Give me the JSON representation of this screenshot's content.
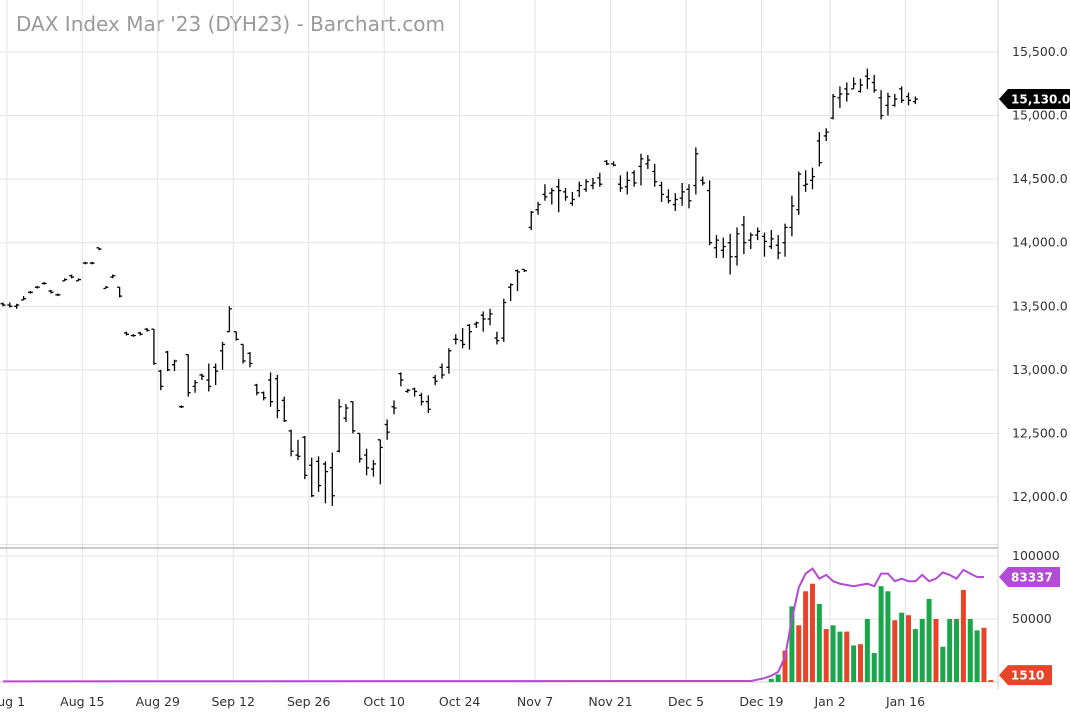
{
  "window": {
    "title": "DAX Index Mar '23 (DYH23) - Barchart.com"
  },
  "chart_data": [
    {
      "type": "ohlc",
      "title": "DAX Index Mar '23 (DYH23) - Barchart.com",
      "ylim": [
        11800,
        15800
      ],
      "y_ticks": [
        "12,000.0",
        "12,500.0",
        "13,000.0",
        "13,500.0",
        "14,000.0",
        "14,500.0",
        "15,000.0",
        "15,500.0"
      ],
      "y_tick_values": [
        12000,
        12500,
        13000,
        13500,
        14000,
        14500,
        15000,
        15500
      ],
      "x_ticks": [
        "Aug 1",
        "Aug 15",
        "Aug 29",
        "Sep 12",
        "Sep 26",
        "Oct 10",
        "Oct 24",
        "Nov 7",
        "Nov 21",
        "Dec 5",
        "Dec 19",
        "Jan 2",
        "Jan 16"
      ],
      "last_price": {
        "label": "15,130.0",
        "value": 15130,
        "color": "#000000"
      },
      "up_color": "#000000",
      "down_color": "#000000",
      "bars": [
        [
          13520,
          13530,
          13500,
          13510
        ],
        [
          13510,
          13530,
          13490,
          13500
        ],
        [
          13500,
          13520,
          13480,
          13510
        ],
        [
          13550,
          13580,
          13550,
          13560
        ],
        [
          13610,
          13620,
          13600,
          13610
        ],
        [
          13650,
          13660,
          13640,
          13650
        ],
        [
          13680,
          13690,
          13670,
          13680
        ],
        [
          13620,
          13630,
          13600,
          13610
        ],
        [
          13590,
          13600,
          13580,
          13590
        ],
        [
          13700,
          13720,
          13700,
          13710
        ],
        [
          13740,
          13750,
          13720,
          13730
        ],
        [
          13700,
          13720,
          13700,
          13710
        ],
        [
          13840,
          13850,
          13830,
          13840
        ],
        [
          13840,
          13850,
          13830,
          13840
        ],
        [
          13960,
          13960,
          13940,
          13950
        ],
        [
          13640,
          13660,
          13640,
          13650
        ],
        [
          13730,
          13750,
          13720,
          13740
        ],
        [
          13650,
          13650,
          13570,
          13580
        ],
        [
          13290,
          13300,
          13270,
          13280
        ],
        [
          13270,
          13280,
          13260,
          13270
        ],
        [
          13290,
          13300,
          13270,
          13280
        ],
        [
          13320,
          13330,
          13300,
          13310
        ],
        [
          13320,
          13320,
          13040,
          13050
        ],
        [
          12990,
          13000,
          12840,
          12870
        ],
        [
          13140,
          13150,
          12990,
          13000
        ],
        [
          13040,
          13080,
          12990,
          13070
        ],
        [
          12710,
          12720,
          12700,
          12710
        ],
        [
          13120,
          13120,
          12790,
          12820
        ],
        [
          12870,
          12920,
          12820,
          12900
        ],
        [
          12960,
          12970,
          12920,
          12950
        ],
        [
          12920,
          13050,
          12830,
          12870
        ],
        [
          13020,
          13050,
          12880,
          12990
        ],
        [
          13150,
          13220,
          13000,
          13200
        ],
        [
          13300,
          13500,
          13300,
          13480
        ],
        [
          13300,
          13300,
          13230,
          13240
        ],
        [
          13200,
          13200,
          13050,
          13070
        ],
        [
          13130,
          13140,
          13020,
          13050
        ],
        [
          12880,
          12890,
          12800,
          12820
        ],
        [
          12820,
          12830,
          12760,
          12780
        ],
        [
          12920,
          12980,
          12710,
          12750
        ],
        [
          12930,
          12960,
          12620,
          12680
        ],
        [
          12760,
          12790,
          12590,
          12600
        ],
        [
          12520,
          12530,
          12320,
          12360
        ],
        [
          12330,
          12450,
          12290,
          12320
        ],
        [
          12470,
          12480,
          12140,
          12170
        ],
        [
          12250,
          12310,
          12000,
          12010
        ],
        [
          12280,
          12320,
          12040,
          12090
        ],
        [
          12260,
          12280,
          11950,
          12200
        ],
        [
          12230,
          12350,
          11930,
          12010
        ],
        [
          12360,
          12770,
          12350,
          12710
        ],
        [
          12620,
          12730,
          12590,
          12700
        ],
        [
          12750,
          12750,
          12500,
          12520
        ],
        [
          12500,
          12500,
          12270,
          12300
        ],
        [
          12330,
          12380,
          12170,
          12230
        ],
        [
          12220,
          12290,
          12160,
          12260
        ],
        [
          12450,
          12450,
          12100,
          12390
        ],
        [
          12570,
          12610,
          12450,
          12510
        ],
        [
          12710,
          12760,
          12650,
          12700
        ],
        [
          12970,
          12980,
          12870,
          12920
        ],
        [
          12830,
          12850,
          12820,
          12840
        ],
        [
          12850,
          12860,
          12790,
          12830
        ],
        [
          12800,
          12820,
          12720,
          12750
        ],
        [
          12750,
          12800,
          12660,
          12690
        ],
        [
          12940,
          12960,
          12880,
          12910
        ],
        [
          13020,
          13050,
          12930,
          12960
        ],
        [
          13020,
          13170,
          12970,
          13150
        ],
        [
          13240,
          13280,
          13200,
          13240
        ],
        [
          13230,
          13330,
          13170,
          13200
        ],
        [
          13350,
          13360,
          13160,
          13300
        ],
        [
          13360,
          13380,
          13330,
          13370
        ],
        [
          13430,
          13460,
          13300,
          13400
        ],
        [
          13400,
          13480,
          13350,
          13440
        ],
        [
          13250,
          13300,
          13200,
          13230
        ],
        [
          13250,
          13560,
          13220,
          13530
        ],
        [
          13650,
          13680,
          13540,
          13670
        ],
        [
          13780,
          13790,
          13620,
          13770
        ],
        [
          13790,
          13790,
          13770,
          13780
        ],
        [
          14120,
          14250,
          14100,
          14240
        ],
        [
          14260,
          14320,
          14220,
          14300
        ],
        [
          14380,
          14460,
          14330,
          14360
        ],
        [
          14390,
          14430,
          14300,
          14410
        ],
        [
          14440,
          14500,
          14240,
          14410
        ],
        [
          14400,
          14430,
          14330,
          14360
        ],
        [
          14310,
          14400,
          14290,
          14340
        ],
        [
          14410,
          14480,
          14360,
          14450
        ],
        [
          14420,
          14500,
          14400,
          14480
        ],
        [
          14450,
          14510,
          14420,
          14470
        ],
        [
          14510,
          14550,
          14440,
          14460
        ],
        [
          14640,
          14650,
          14610,
          14620
        ],
        [
          14620,
          14640,
          14600,
          14610
        ],
        [
          14460,
          14530,
          14400,
          14430
        ],
        [
          14440,
          14560,
          14380,
          14490
        ],
        [
          14550,
          14570,
          14440,
          14470
        ],
        [
          14600,
          14700,
          14450,
          14660
        ],
        [
          14620,
          14690,
          14580,
          14650
        ],
        [
          14560,
          14620,
          14440,
          14480
        ],
        [
          14450,
          14480,
          14320,
          14380
        ],
        [
          14360,
          14420,
          14310,
          14330
        ],
        [
          14300,
          14390,
          14250,
          14340
        ],
        [
          14350,
          14470,
          14290,
          14400
        ],
        [
          14420,
          14460,
          14270,
          14330
        ],
        [
          14450,
          14750,
          14380,
          14700
        ],
        [
          14490,
          14520,
          14450,
          14470
        ],
        [
          14410,
          14490,
          13980,
          14000
        ],
        [
          13960,
          14060,
          13880,
          14020
        ],
        [
          13940,
          14040,
          13880,
          13970
        ],
        [
          14000,
          14070,
          13750,
          13890
        ],
        [
          13890,
          14120,
          13820,
          14070
        ],
        [
          14140,
          14210,
          13910,
          14000
        ],
        [
          14020,
          14080,
          13950,
          14060
        ],
        [
          14060,
          14120,
          14020,
          14090
        ],
        [
          14050,
          14080,
          13890,
          14010
        ],
        [
          13970,
          14100,
          13950,
          14030
        ],
        [
          13980,
          14060,
          13870,
          13920
        ],
        [
          14000,
          14150,
          13890,
          14120
        ],
        [
          14120,
          14370,
          14050,
          14290
        ],
        [
          14260,
          14560,
          14220,
          14540
        ],
        [
          14450,
          14570,
          14400,
          14460
        ],
        [
          14490,
          14590,
          14420,
          14520
        ],
        [
          14800,
          14870,
          14600,
          14630
        ],
        [
          14840,
          14900,
          14800,
          14870
        ],
        [
          14980,
          15170,
          14970,
          15150
        ],
        [
          15140,
          15230,
          15060,
          15170
        ],
        [
          15210,
          15260,
          15110,
          15170
        ],
        [
          15210,
          15300,
          15210,
          15250
        ],
        [
          15190,
          15290,
          15180,
          15240
        ],
        [
          15310,
          15370,
          15210,
          15290
        ],
        [
          15260,
          15320,
          15180,
          15200
        ],
        [
          15140,
          15200,
          14970,
          15000
        ],
        [
          15080,
          15180,
          15000,
          15150
        ],
        [
          15080,
          15170,
          15070,
          15130
        ],
        [
          15210,
          15230,
          15100,
          15120
        ],
        [
          15150,
          15180,
          15080,
          15120
        ],
        [
          15110,
          15150,
          15090,
          15130
        ]
      ]
    },
    {
      "type": "bar+line",
      "name": "volume",
      "ylim": [
        0,
        100000
      ],
      "y_ticks": [
        "50000",
        "100000"
      ],
      "y_tick_values": [
        50000,
        100000
      ],
      "line_badge": {
        "label": "83337",
        "value": 83337,
        "color": "#b44bd6"
      },
      "last_volume_badge": {
        "label": "1510",
        "value": 1510,
        "color": "#e8442a"
      },
      "bar_colors": {
        "up": "#1aa64a",
        "down": "#e8442a"
      },
      "line_color": "#b44bd6",
      "volume_bars": [
        [
          112,
          2500,
          "up"
        ],
        [
          113,
          6000,
          "up"
        ],
        [
          114,
          25000,
          "down"
        ],
        [
          115,
          60000,
          "up"
        ],
        [
          116,
          45000,
          "down"
        ],
        [
          117,
          72000,
          "down"
        ],
        [
          118,
          78000,
          "down"
        ],
        [
          119,
          62000,
          "up"
        ],
        [
          120,
          42000,
          "down"
        ],
        [
          121,
          45000,
          "up"
        ],
        [
          122,
          40000,
          "green"
        ],
        [
          123,
          40000,
          "down"
        ],
        [
          124,
          29000,
          "up"
        ],
        [
          125,
          30000,
          "down"
        ],
        [
          126,
          50000,
          "up"
        ],
        [
          127,
          23000,
          "up"
        ],
        [
          128,
          76000,
          "up"
        ],
        [
          129,
          72000,
          "up"
        ],
        [
          130,
          49000,
          "down"
        ],
        [
          131,
          55000,
          "up"
        ],
        [
          132,
          53000,
          "down"
        ],
        [
          133,
          42000,
          "up"
        ],
        [
          134,
          50000,
          "up"
        ],
        [
          135,
          66000,
          "up"
        ],
        [
          136,
          50000,
          "down"
        ],
        [
          137,
          28000,
          "up"
        ],
        [
          138,
          50000,
          "up"
        ],
        [
          139,
          50000,
          "up"
        ],
        [
          140,
          73000,
          "down"
        ],
        [
          141,
          50000,
          "up"
        ],
        [
          142,
          41000,
          "up"
        ],
        [
          143,
          43000,
          "down"
        ],
        [
          144,
          1510,
          "down"
        ]
      ],
      "avg_line": [
        [
          0,
          500
        ],
        [
          109,
          800
        ],
        [
          111,
          3000
        ],
        [
          112,
          5000
        ],
        [
          113,
          8000
        ],
        [
          114,
          20000
        ],
        [
          115,
          50000
        ],
        [
          116,
          75000
        ],
        [
          117,
          86000
        ],
        [
          118,
          90000
        ],
        [
          119,
          82000
        ],
        [
          120,
          85000
        ],
        [
          121,
          80000
        ],
        [
          122,
          78000
        ],
        [
          124,
          76000
        ],
        [
          126,
          78000
        ],
        [
          127,
          76000
        ],
        [
          128,
          86000
        ],
        [
          129,
          86000
        ],
        [
          130,
          80000
        ],
        [
          131,
          82000
        ],
        [
          132,
          80000
        ],
        [
          133,
          80000
        ],
        [
          134,
          85000
        ],
        [
          135,
          80000
        ],
        [
          136,
          82000
        ],
        [
          137,
          87000
        ],
        [
          138,
          85000
        ],
        [
          139,
          82000
        ],
        [
          140,
          89000
        ],
        [
          141,
          86000
        ],
        [
          142,
          83337
        ],
        [
          143,
          83337
        ]
      ]
    }
  ]
}
